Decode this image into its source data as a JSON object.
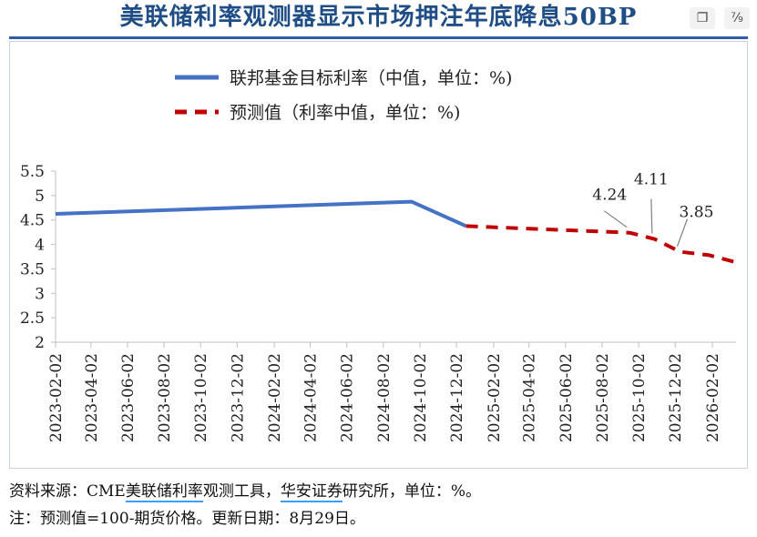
{
  "title": "美联储利率观测器显示市场押注年底降息50BP",
  "toolbar": {
    "copy_icon": "copy-icon",
    "page_label": "⁷⁄₉"
  },
  "legend": [
    {
      "label": "联邦基金目标利率（中值，单位：%)",
      "color": "#4472c4",
      "style": "solid"
    },
    {
      "label": "预测值（利率中值，单位：%)",
      "color": "#c00000",
      "style": "dashed"
    }
  ],
  "chart_data": {
    "type": "line",
    "xlabel": "",
    "ylabel": "",
    "ylim": [
      2,
      5.5
    ],
    "yticks": [
      "5.5",
      "5",
      "4.5",
      "4",
      "3.5",
      "3",
      "2.5",
      "2"
    ],
    "xticks": [
      "2023-02-02",
      "2023-04-02",
      "2023-06-02",
      "2023-08-02",
      "2023-10-02",
      "2023-12-02",
      "2024-02-02",
      "2024-04-02",
      "2024-06-02",
      "2024-08-02",
      "2024-10-02",
      "2024-12-02",
      "2025-02-02",
      "2025-04-02",
      "2025-06-02",
      "2025-08-02",
      "2025-10-02",
      "2025-12-02",
      "2026-02-02"
    ],
    "grid": false,
    "legend_position": "top",
    "series": [
      {
        "name": "联邦基金目标利率（中值，单位：%)",
        "style": "solid",
        "color": "#4472c4",
        "x": [
          "2023-02-02",
          "2024-09-18",
          "2024-12-18"
        ],
        "y": [
          4.625,
          4.875,
          4.375
        ]
      },
      {
        "name": "预测值（利率中值，单位：%)",
        "style": "dashed",
        "color": "#c00000",
        "x": [
          "2024-12-18",
          "2025-09-17",
          "2025-10-29",
          "2025-12-10",
          "2026-01-28",
          "2026-03-18"
        ],
        "y": [
          4.375,
          4.24,
          4.11,
          3.85,
          3.78,
          3.62
        ]
      }
    ],
    "annotations": [
      {
        "text": "4.24",
        "x": "2025-09-17",
        "y": 4.24
      },
      {
        "text": "4.11",
        "x": "2025-10-29",
        "y": 4.11
      },
      {
        "text": "3.85",
        "x": "2025-12-10",
        "y": 3.85
      }
    ]
  },
  "footnotes": {
    "source_prefix": "资料来源：CME",
    "source_tool": "美联储利率",
    "source_mid": "观测工具，",
    "source_firm": "华安证券",
    "source_suffix": "研究所，单位：%。",
    "note": "注：预测值=100-期货价格。更新日期：8月29日。"
  }
}
